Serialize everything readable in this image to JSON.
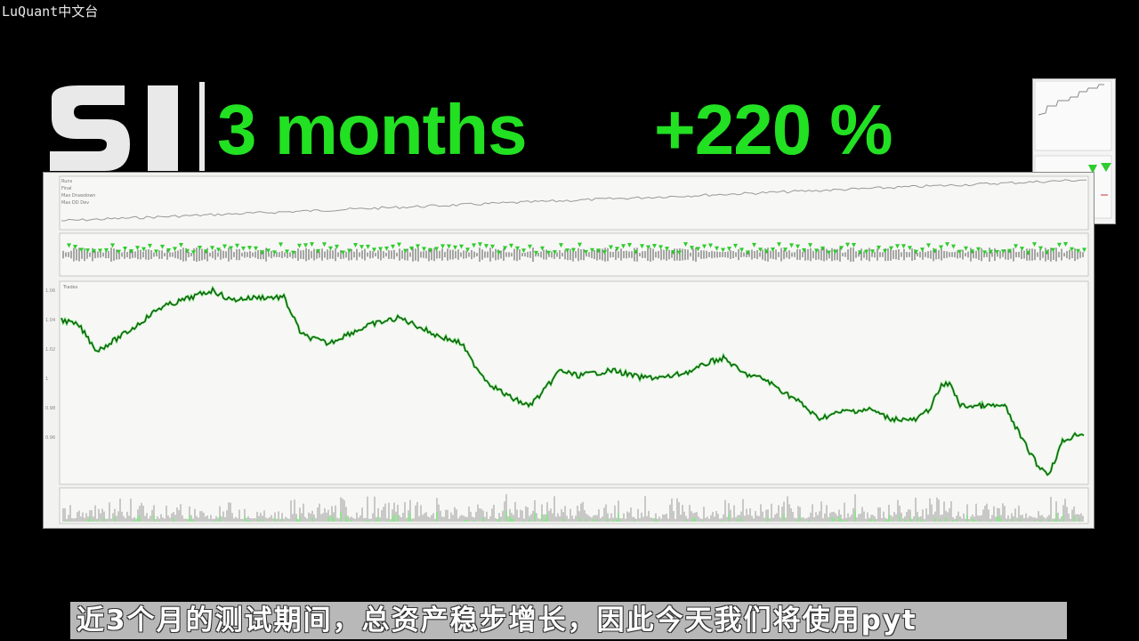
{
  "overlay": {
    "watermark": "LuQuant中文台",
    "logo_text": "SI",
    "period": "3 months",
    "gain": "+220 %",
    "subtitle": "近3个月的测试期间，总资产稳步增长，因此今天我们将使用pyt"
  },
  "chart_panel": {
    "legend": [
      "Runs",
      "Final",
      "Max Drawdown",
      "Max DD Dev"
    ],
    "price_series_label": "Trades",
    "price_axis_ticks": [
      "1.06",
      "1.04",
      "1.02",
      "1",
      "0.98",
      "0.96"
    ]
  },
  "colors": {
    "background": "#000000",
    "headline_green": "#22e022",
    "trade_marker_green": "#2ecc2e",
    "panel_bg": "#f2f2f0"
  }
}
